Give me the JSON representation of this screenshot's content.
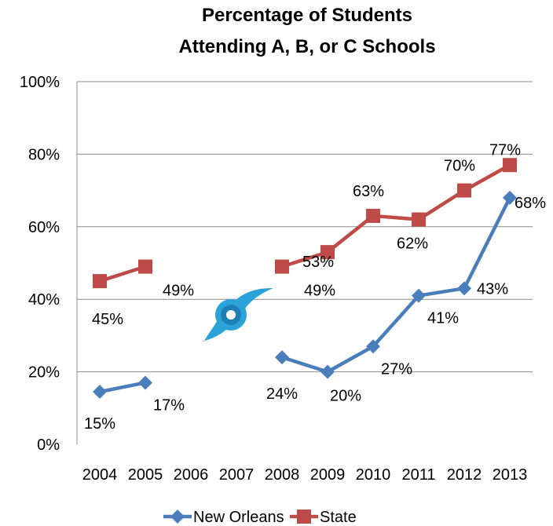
{
  "chart_data": {
    "type": "line",
    "title_lines": [
      "Percentage of Students",
      "Attending A, B, or C Schools"
    ],
    "categories": [
      "2004",
      "2005",
      "2006",
      "2007",
      "2008",
      "2009",
      "2010",
      "2011",
      "2012",
      "2013"
    ],
    "y_ticks": [
      "0%",
      "20%",
      "40%",
      "60%",
      "80%",
      "100%"
    ],
    "ylim": [
      0,
      100
    ],
    "grid": true,
    "legend_position": "bottom",
    "series": [
      {
        "name": "New Orleans",
        "color": "#4A7EBB",
        "marker": "diamond",
        "values": [
          14.5,
          17,
          null,
          null,
          24,
          20,
          27,
          41,
          43,
          68
        ],
        "labels": [
          "15%",
          "17%",
          null,
          null,
          "24%",
          "20%",
          "27%",
          "41%",
          "43%",
          "68%"
        ]
      },
      {
        "name": "State",
        "color": "#BE4B48",
        "marker": "square",
        "values": [
          45,
          49,
          null,
          null,
          49,
          53,
          63,
          62,
          70,
          77
        ],
        "labels": [
          "45%",
          "49%",
          null,
          null,
          "49%",
          "53%",
          "63%",
          "62%",
          "70%",
          "77%"
        ]
      }
    ],
    "icon": "hurricane-icon"
  }
}
